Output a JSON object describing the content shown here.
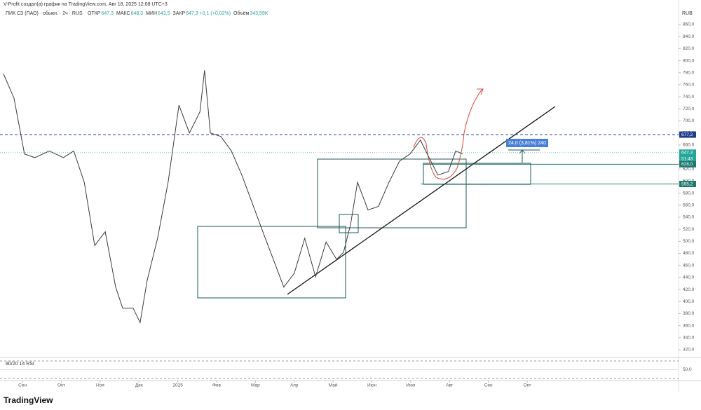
{
  "header": {
    "credit": "V-Profit создал(а) график на TradingView.com, Авг 18, 2025 12:08 UTC+3",
    "symbol": "ПИК СЗ (ПАО) · обыкн. · 2ч · RUS",
    "ohlc": [
      {
        "label": "ОТКР",
        "value": "647,3"
      },
      {
        "label": "МАКС",
        "value": "648,3"
      },
      {
        "label": "МИН",
        "value": "643,5"
      },
      {
        "label": "ЗАКР",
        "value": "647,3 +0,1 (+0,02%)"
      },
      {
        "label": "Объём",
        "value": "343,59K"
      }
    ],
    "currency": "RUB"
  },
  "chart_data": {
    "type": "line",
    "color": "#3b3b3b",
    "x": [
      -0.49,
      -0.22,
      0.05,
      0.32,
      0.69,
      1.05,
      1.32,
      1.59,
      1.86,
      2.13,
      2.4,
      2.58,
      2.85,
      3.03,
      3.21,
      3.48,
      3.75,
      4.03,
      4.3,
      4.57,
      4.69,
      4.84,
      5.11,
      5.38,
      5.65,
      5.92,
      6.19,
      6.46,
      6.73,
      7.0,
      7.27,
      7.55,
      7.82,
      8.09,
      8.27,
      8.45,
      8.63,
      8.9,
      9.17,
      9.44,
      9.71,
      9.98,
      10.25,
      10.52,
      10.7,
      10.97,
      11.16,
      11.34
    ],
    "values": [
      778,
      738,
      645,
      639,
      650,
      639,
      650,
      598,
      493,
      516,
      424,
      389,
      389,
      365,
      435,
      505,
      598,
      726,
      680,
      715,
      784,
      680,
      674,
      650,
      610,
      563,
      516,
      470,
      424,
      447,
      505,
      441,
      499,
      470,
      482,
      528,
      598,
      552,
      558,
      598,
      633,
      645,
      668,
      633,
      610,
      616,
      650,
      645
    ],
    "xlim": [
      -0.58,
      16.9
    ],
    "xticks": [
      {
        "value": 0,
        "label": "Сен"
      },
      {
        "value": 1,
        "label": "Окт"
      },
      {
        "value": 2,
        "label": "Ноя"
      },
      {
        "value": 3,
        "label": "Дек"
      },
      {
        "value": 4,
        "label": "2025"
      },
      {
        "value": 5,
        "label": "Фев"
      },
      {
        "value": 6,
        "label": "Мар"
      },
      {
        "value": 7,
        "label": "Апр"
      },
      {
        "value": 8,
        "label": "Май"
      },
      {
        "value": 9,
        "label": "Июн"
      },
      {
        "value": 10,
        "label": "Июл"
      },
      {
        "value": 11,
        "label": "Авг"
      },
      {
        "value": 12,
        "label": "Сен"
      },
      {
        "value": 13,
        "label": "Окт"
      }
    ],
    "ylim": [
      320,
      860
    ],
    "yticks": [
      {
        "value": 320,
        "label": "320,0"
      },
      {
        "value": 340,
        "label": "340,0"
      },
      {
        "value": 360,
        "label": "360,0"
      },
      {
        "value": 380,
        "label": "380,0"
      },
      {
        "value": 400,
        "label": "400,0"
      },
      {
        "value": 420,
        "label": "420,0"
      },
      {
        "value": 440,
        "label": "440,0"
      },
      {
        "value": 460,
        "label": "460,0"
      },
      {
        "value": 480,
        "label": "480,0"
      },
      {
        "value": 500,
        "label": "500,0"
      },
      {
        "value": 520,
        "label": "520,0"
      },
      {
        "value": 540,
        "label": "540,0"
      },
      {
        "value": 560,
        "label": "560,0"
      },
      {
        "value": 580,
        "label": "580,0"
      },
      {
        "value": 600,
        "label": "600,0"
      },
      {
        "value": 620,
        "label": "620,0"
      },
      {
        "value": 640,
        "label": "640,0"
      },
      {
        "value": 660,
        "label": "660,0"
      },
      {
        "value": 680,
        "label": "680,0"
      },
      {
        "value": 700,
        "label": "700,0"
      },
      {
        "value": 720,
        "label": "720,0"
      },
      {
        "value": 740,
        "label": "740,0"
      },
      {
        "value": 760,
        "label": "760,0"
      },
      {
        "value": 780,
        "label": "780,0"
      },
      {
        "value": 800,
        "label": "800,0"
      },
      {
        "value": 820,
        "label": "820,0"
      },
      {
        "value": 840,
        "label": "840,0"
      },
      {
        "value": 860,
        "label": "860,0"
      }
    ],
    "price_lines": [
      {
        "value": 677.2,
        "label": "677,2",
        "color": "#1e3a8a"
      },
      {
        "value": 647.3,
        "label": "647,3",
        "timer": "51:43",
        "color": "#26a69a"
      },
      {
        "value": 628.0,
        "label": "628,0",
        "color": "#1f7a6e"
      },
      {
        "value": 595.2,
        "label": "595,2",
        "color": "#1f7a6e"
      }
    ],
    "annotation": "24,0 (3,81%) 240",
    "rsi": {
      "label": "80/20 14 RSI",
      "ylim": [
        20,
        80
      ],
      "yticks": [
        {
          "value": 50,
          "label": "50,0"
        }
      ]
    }
  },
  "footer": {
    "logo": "TradingView"
  }
}
